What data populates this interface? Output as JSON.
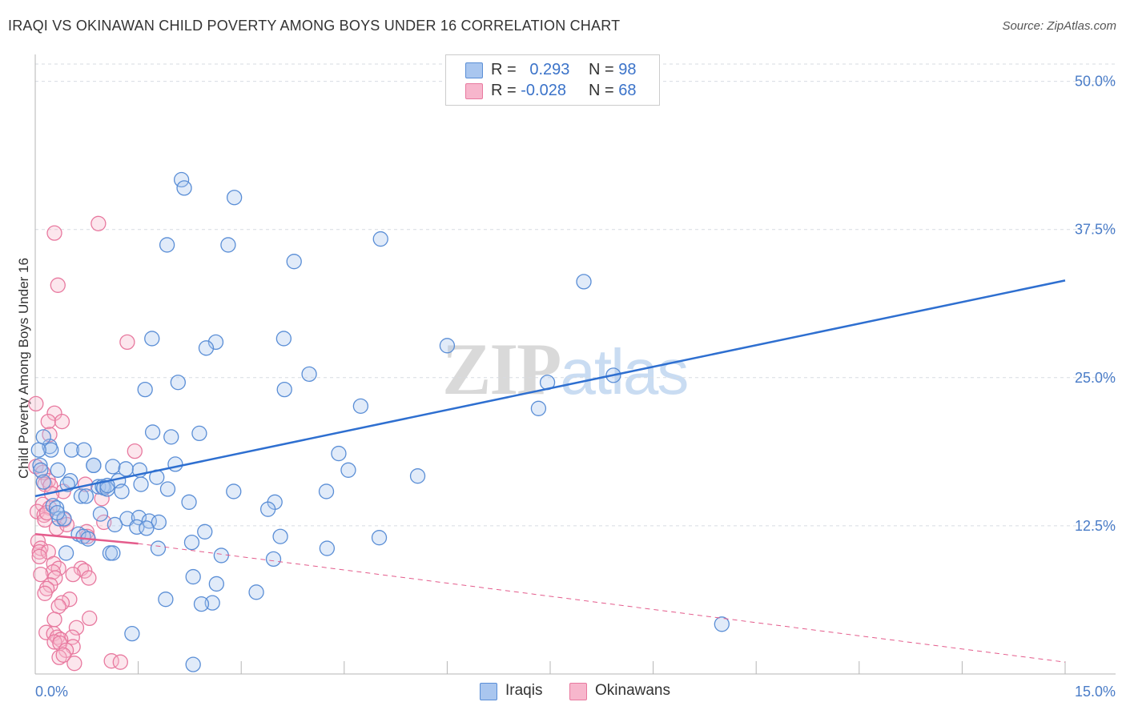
{
  "header": {
    "title": "IRAQI VS OKINAWAN CHILD POVERTY AMONG BOYS UNDER 16 CORRELATION CHART",
    "source": "Source: ZipAtlas.com"
  },
  "watermark": {
    "zip": "ZIP",
    "atlas": "atlas"
  },
  "legend": {
    "rows": [
      {
        "r_label": "R =",
        "r_value": "0.293",
        "n_label": "N =",
        "n_value": "98"
      },
      {
        "r_label": "R =",
        "r_value": "-0.028",
        "n_label": "N =",
        "n_value": "68"
      }
    ]
  },
  "bottom_legend": {
    "iraqis": "Iraqis",
    "okinawans": "Okinawans"
  },
  "colors": {
    "iraqi_fill": "#a9c6ef",
    "iraqi_stroke": "#5a8ed6",
    "iraqi_line": "#2e6fd0",
    "okinawan_fill": "#f7b6cc",
    "okinawan_stroke": "#e8799f",
    "okinawan_line": "#e45c8c",
    "grid": "#d7dbe2",
    "tick_text": "#4a7cc7"
  },
  "chart_data": {
    "type": "scatter",
    "title": "IRAQI VS OKINAWAN CHILD POVERTY AMONG BOYS UNDER 16 CORRELATION CHART",
    "xlabel": "",
    "ylabel": "Child Poverty Among Boys Under 16",
    "xlim": [
      0,
      15
    ],
    "ylim": [
      0,
      52
    ],
    "x_tick_labels": [
      "0.0%",
      "15.0%"
    ],
    "y_ticks": [
      12.5,
      25.0,
      37.5,
      50.0
    ],
    "y_tick_labels": [
      "12.5%",
      "25.0%",
      "37.5%",
      "50.0%"
    ],
    "grid": true,
    "legend_position": "top-center",
    "series": [
      {
        "name": "Iraqis",
        "r": 0.293,
        "n": 98,
        "trend": {
          "x": [
            0,
            15
          ],
          "y": [
            15.0,
            33.2
          ],
          "dashed_extension": false
        },
        "points": [
          [
            2.13,
            41.7
          ],
          [
            2.17,
            41.0
          ],
          [
            2.9,
            40.2
          ],
          [
            1.92,
            36.2
          ],
          [
            2.81,
            36.2
          ],
          [
            5.03,
            36.7
          ],
          [
            3.77,
            34.8
          ],
          [
            7.99,
            33.1
          ],
          [
            1.7,
            28.3
          ],
          [
            2.63,
            28.0
          ],
          [
            3.62,
            28.3
          ],
          [
            2.49,
            27.5
          ],
          [
            6.0,
            27.7
          ],
          [
            3.99,
            25.3
          ],
          [
            2.08,
            24.6
          ],
          [
            7.46,
            24.6
          ],
          [
            8.42,
            25.2
          ],
          [
            1.6,
            24.0
          ],
          [
            3.63,
            24.0
          ],
          [
            4.74,
            22.6
          ],
          [
            7.33,
            22.4
          ],
          [
            1.71,
            20.4
          ],
          [
            2.39,
            20.3
          ],
          [
            1.98,
            20.0
          ],
          [
            0.21,
            19.2
          ],
          [
            0.23,
            18.9
          ],
          [
            0.53,
            18.9
          ],
          [
            0.71,
            18.9
          ],
          [
            0.05,
            18.9
          ],
          [
            4.42,
            18.6
          ],
          [
            0.07,
            17.6
          ],
          [
            0.08,
            17.2
          ],
          [
            0.33,
            17.2
          ],
          [
            0.85,
            17.6
          ],
          [
            0.85,
            17.6
          ],
          [
            1.13,
            17.5
          ],
          [
            1.52,
            17.2
          ],
          [
            1.32,
            17.3
          ],
          [
            2.04,
            17.7
          ],
          [
            4.56,
            17.2
          ],
          [
            5.57,
            16.7
          ],
          [
            0.12,
            16.2
          ],
          [
            0.51,
            16.3
          ],
          [
            1.77,
            16.6
          ],
          [
            1.21,
            16.3
          ],
          [
            1.54,
            16.0
          ],
          [
            0.92,
            15.8
          ],
          [
            0.98,
            15.8
          ],
          [
            1.0,
            15.7
          ],
          [
            1.05,
            15.6
          ],
          [
            1.26,
            15.4
          ],
          [
            1.93,
            15.6
          ],
          [
            2.89,
            15.4
          ],
          [
            4.24,
            15.4
          ],
          [
            0.67,
            15.0
          ],
          [
            0.74,
            15.0
          ],
          [
            2.24,
            14.5
          ],
          [
            3.49,
            14.5
          ],
          [
            0.26,
            14.2
          ],
          [
            0.31,
            14.0
          ],
          [
            3.39,
            13.9
          ],
          [
            0.95,
            13.5
          ],
          [
            0.35,
            13.1
          ],
          [
            0.42,
            13.1
          ],
          [
            1.34,
            13.1
          ],
          [
            1.51,
            13.2
          ],
          [
            1.66,
            12.9
          ],
          [
            1.8,
            12.8
          ],
          [
            1.16,
            12.6
          ],
          [
            1.48,
            12.4
          ],
          [
            1.62,
            12.3
          ],
          [
            2.47,
            12.0
          ],
          [
            3.57,
            11.6
          ],
          [
            5.01,
            11.5
          ],
          [
            0.63,
            11.8
          ],
          [
            0.7,
            11.6
          ],
          [
            0.77,
            11.4
          ],
          [
            2.28,
            11.1
          ],
          [
            1.79,
            10.6
          ],
          [
            4.25,
            10.6
          ],
          [
            0.45,
            10.2
          ],
          [
            1.09,
            10.2
          ],
          [
            1.13,
            10.2
          ],
          [
            2.71,
            10.0
          ],
          [
            3.47,
            9.7
          ],
          [
            2.3,
            8.2
          ],
          [
            2.64,
            7.6
          ],
          [
            3.22,
            6.9
          ],
          [
            1.9,
            6.3
          ],
          [
            2.58,
            6.0
          ],
          [
            2.42,
            5.9
          ],
          [
            10.0,
            4.2
          ],
          [
            1.41,
            3.4
          ],
          [
            2.3,
            0.8
          ],
          [
            0.12,
            20.0
          ],
          [
            0.32,
            13.6
          ],
          [
            0.47,
            16.0
          ],
          [
            1.05,
            15.9
          ]
        ]
      },
      {
        "name": "Okinawans",
        "r": -0.028,
        "n": 68,
        "trend": {
          "x": [
            0,
            1.5
          ],
          "y": [
            11.8,
            11.0
          ],
          "dashed_extension": true,
          "dashed_to": [
            15,
            1.0
          ]
        },
        "points": [
          [
            0.92,
            38.0
          ],
          [
            0.28,
            37.2
          ],
          [
            0.33,
            32.8
          ],
          [
            1.34,
            28.0
          ],
          [
            0.01,
            22.8
          ],
          [
            0.28,
            22.0
          ],
          [
            0.19,
            21.3
          ],
          [
            0.39,
            21.3
          ],
          [
            0.21,
            20.2
          ],
          [
            1.45,
            18.8
          ],
          [
            0.01,
            17.5
          ],
          [
            0.11,
            17.0
          ],
          [
            0.19,
            16.3
          ],
          [
            0.14,
            16.0
          ],
          [
            0.22,
            15.9
          ],
          [
            0.41,
            15.4
          ],
          [
            0.97,
            14.8
          ],
          [
            0.11,
            14.3
          ],
          [
            0.21,
            14.0
          ],
          [
            0.03,
            13.7
          ],
          [
            0.13,
            13.4
          ],
          [
            0.14,
            13.0
          ],
          [
            0.42,
            13.0
          ],
          [
            0.31,
            12.3
          ],
          [
            0.75,
            12.0
          ],
          [
            0.76,
            11.6
          ],
          [
            0.04,
            11.2
          ],
          [
            0.08,
            10.6
          ],
          [
            0.06,
            10.3
          ],
          [
            0.19,
            10.3
          ],
          [
            0.06,
            9.9
          ],
          [
            0.27,
            9.3
          ],
          [
            0.34,
            8.9
          ],
          [
            0.67,
            8.9
          ],
          [
            0.72,
            8.7
          ],
          [
            0.26,
            8.6
          ],
          [
            0.08,
            8.4
          ],
          [
            0.55,
            8.4
          ],
          [
            0.29,
            8.1
          ],
          [
            0.78,
            8.1
          ],
          [
            0.22,
            7.5
          ],
          [
            0.17,
            7.2
          ],
          [
            0.14,
            6.8
          ],
          [
            0.5,
            6.3
          ],
          [
            0.39,
            6.0
          ],
          [
            0.34,
            5.7
          ],
          [
            0.79,
            4.7
          ],
          [
            0.28,
            4.6
          ],
          [
            0.6,
            3.9
          ],
          [
            0.16,
            3.5
          ],
          [
            0.27,
            3.4
          ],
          [
            0.32,
            3.1
          ],
          [
            0.54,
            3.1
          ],
          [
            0.37,
            2.9
          ],
          [
            0.28,
            2.7
          ],
          [
            0.36,
            2.6
          ],
          [
            0.55,
            2.3
          ],
          [
            0.45,
            2.0
          ],
          [
            0.35,
            1.4
          ],
          [
            0.41,
            1.6
          ],
          [
            0.57,
            0.9
          ],
          [
            1.11,
            1.1
          ],
          [
            1.24,
            1.0
          ],
          [
            0.17,
            13.6
          ],
          [
            0.24,
            15.2
          ],
          [
            0.46,
            12.6
          ],
          [
            0.73,
            16.0
          ],
          [
            1.0,
            12.8
          ]
        ]
      }
    ]
  }
}
